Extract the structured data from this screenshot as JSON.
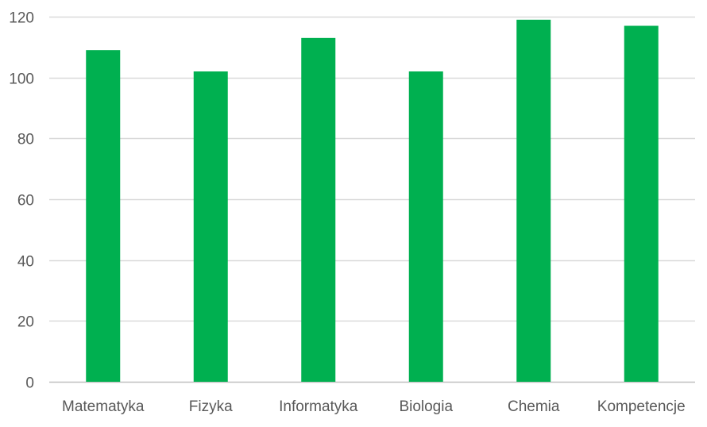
{
  "chart_data": {
    "type": "bar",
    "title": "",
    "xlabel": "",
    "ylabel": "",
    "categories": [
      "Matematyka",
      "Fizyka",
      "Informatyka",
      "Biologia",
      "Chemia",
      "Kompetencje"
    ],
    "values": [
      109,
      102,
      113,
      102,
      119,
      117
    ],
    "ylim": [
      0,
      120
    ],
    "yticks": [
      "0",
      "20",
      "40",
      "60",
      "80",
      "100",
      "120"
    ],
    "grid": true,
    "legend": "none",
    "colors": {
      "bar": "#00b050",
      "grid": "#d9d9d9",
      "axis": "#bfbfbf",
      "text": "#595959"
    }
  }
}
